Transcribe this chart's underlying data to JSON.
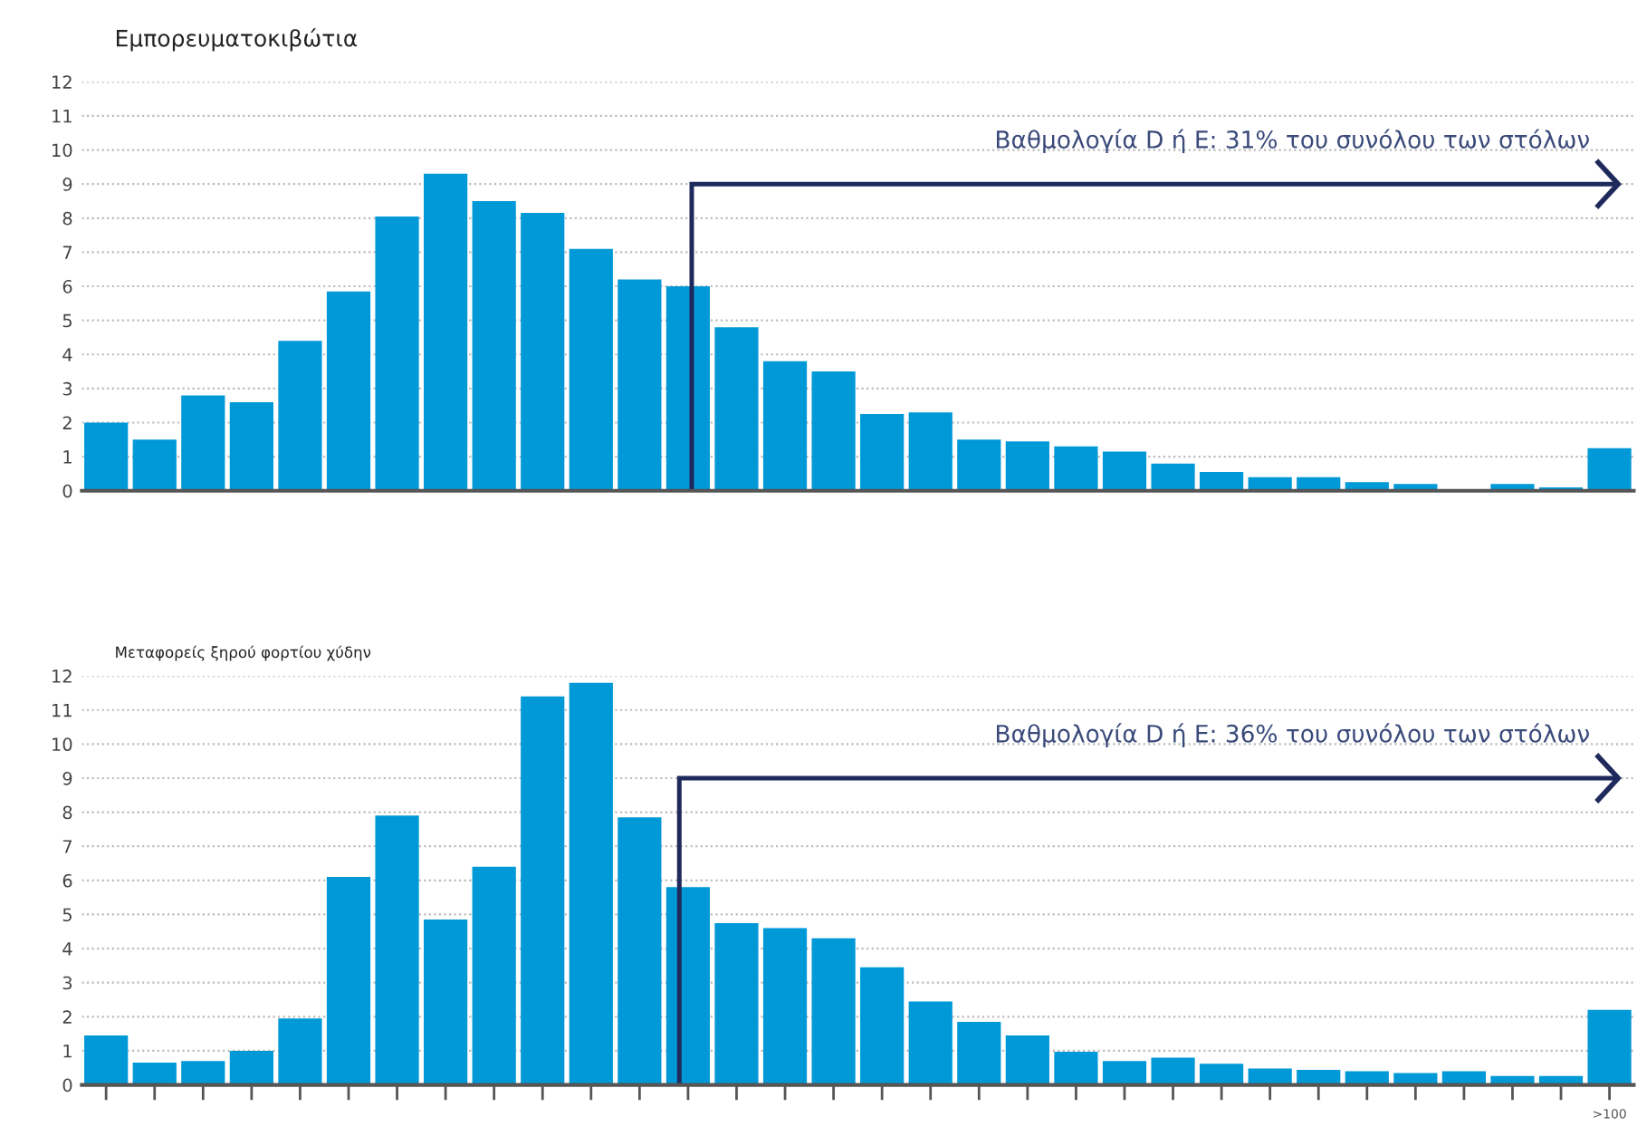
{
  "chart_data": [
    {
      "type": "bar",
      "title": "Εμπορευματοκιβώτια",
      "categories": [
        null,
        null,
        null,
        null,
        null,
        null,
        null,
        null,
        null,
        null,
        null,
        null,
        null,
        null,
        null,
        null,
        null,
        null,
        null,
        null,
        null,
        null,
        null,
        null,
        null,
        null,
        null,
        null,
        null,
        null,
        null,
        null
      ],
      "values": [
        2.0,
        1.5,
        2.8,
        2.6,
        4.4,
        5.85,
        8.05,
        9.3,
        8.5,
        8.15,
        7.1,
        6.2,
        6.0,
        4.8,
        3.8,
        3.5,
        2.25,
        2.3,
        1.5,
        1.45,
        1.3,
        1.15,
        0.8,
        0.55,
        0.4,
        0.4,
        0.25,
        0.2,
        null,
        0.2,
        0.1,
        1.25
      ],
      "color": "#0099d8",
      "ylim": [
        0,
        12
      ],
      "yticks": [
        0,
        1,
        2,
        3,
        4,
        5,
        6,
        7,
        8,
        9,
        10,
        11,
        12
      ],
      "grid": "y",
      "legend": false,
      "tick_labels": "y",
      "annotations": [
        "Βαθμολογία D ή E: 31% του συνόλου των στόλων"
      ]
    },
    {
      "type": "bar",
      "title": "Μεταφορείς ξηρού φορτίου χύδην",
      "categories": [
        null,
        null,
        null,
        null,
        null,
        null,
        null,
        null,
        null,
        null,
        null,
        null,
        null,
        null,
        null,
        null,
        null,
        null,
        null,
        null,
        null,
        null,
        null,
        null,
        null,
        null,
        null,
        null,
        null,
        null,
        null,
        ">100"
      ],
      "values": [
        1.45,
        0.65,
        0.7,
        1.0,
        1.95,
        6.1,
        7.9,
        4.85,
        6.4,
        11.4,
        11.8,
        7.85,
        5.8,
        4.75,
        4.6,
        4.3,
        3.45,
        2.45,
        1.85,
        1.45,
        0.97,
        0.7,
        0.8,
        0.62,
        0.48,
        0.44,
        0.4,
        0.35,
        0.4,
        0.26,
        0.26,
        2.2
      ],
      "color": "#0099d8",
      "ylim": [
        0,
        12
      ],
      "yticks": [
        0,
        1,
        2,
        3,
        4,
        5,
        6,
        7,
        8,
        9,
        10,
        11,
        12
      ],
      "grid": "y",
      "legend": false,
      "annotations": [
        "Βαθμολογία D ή E: 36% του συνόλου των στόλων"
      ]
    }
  ]
}
